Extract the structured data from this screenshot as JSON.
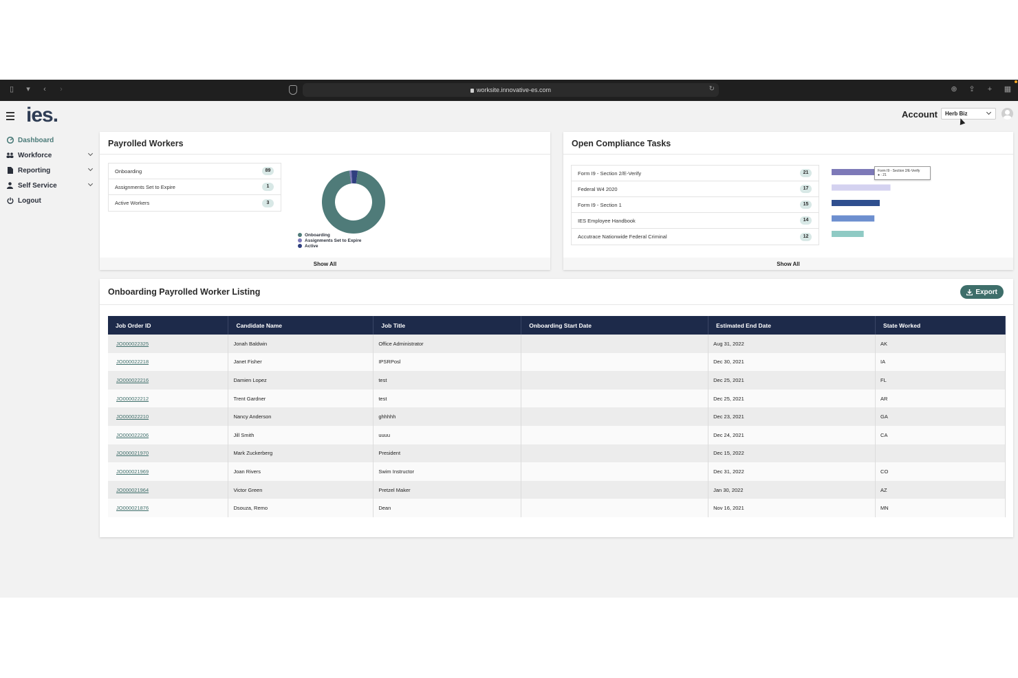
{
  "browser": {
    "url": "worksite.innovative-es.com"
  },
  "app": {
    "logo": "ies",
    "logo_dot": "."
  },
  "sidebar": {
    "items": [
      {
        "label": "Dashboard",
        "icon": "dashboard-icon"
      },
      {
        "label": "Workforce",
        "icon": "users-icon"
      },
      {
        "label": "Reporting",
        "icon": "document-icon"
      },
      {
        "label": "Self Service",
        "icon": "person-icon"
      },
      {
        "label": "Logout",
        "icon": "power-icon"
      }
    ]
  },
  "header": {
    "account_label": "Account",
    "account_value": "Herb Biz"
  },
  "payrolled": {
    "title": "Payrolled Workers",
    "rows": [
      {
        "label": "Onboarding",
        "count": "89"
      },
      {
        "label": "Assignments Set to Expire",
        "count": "1"
      },
      {
        "label": "Active Workers",
        "count": "3"
      }
    ],
    "legend": [
      "Onboarding",
      "Assignments Set to Expire",
      "Active"
    ],
    "colors": [
      "#4f7b79",
      "#7d79b8",
      "#2f3f7f"
    ],
    "values": [
      89,
      1,
      3
    ],
    "show_all": "Show All"
  },
  "compliance": {
    "title": "Open Compliance Tasks",
    "rows": [
      {
        "label": "Form I9 - Section 2/E-Verify",
        "count": "21"
      },
      {
        "label": "Federal W4 2020",
        "count": "17"
      },
      {
        "label": "Form I9 - Section 1",
        "count": "15"
      },
      {
        "label": "IES Employee Handbook",
        "count": "14"
      },
      {
        "label": "Accutrace Nationwide Federal Criminal",
        "count": "12"
      }
    ],
    "bar_colors": [
      "#7d79b8",
      "#d4d2f0",
      "#2f4f8f",
      "#6d8fcf",
      "#8fcac4"
    ],
    "tooltip_title": "Form I9 - Section 2/E-Verify",
    "tooltip_value": "● : 21",
    "show_all": "Show All"
  },
  "listing": {
    "title": "Onboarding Payrolled Worker Listing",
    "export_label": "Export",
    "columns": [
      "Job Order ID",
      "Candidate Name",
      "Job Title",
      "Onboarding Start Date",
      "Estimated End Date",
      "State Worked"
    ],
    "rows": [
      [
        "JO000022325",
        "Jonah Baldwin",
        "Office Administrator",
        "",
        "Aug 31, 2022",
        "AK"
      ],
      [
        "JO000022218",
        "Janet Fisher",
        "IPSRPosl",
        "",
        "Dec 30, 2021",
        "IA"
      ],
      [
        "JO000022216",
        "Damien Lopez",
        "test",
        "",
        "Dec 25, 2021",
        "FL"
      ],
      [
        "JO000022212",
        "Trent Gardner",
        "test",
        "",
        "Dec 25, 2021",
        "AR"
      ],
      [
        "JO000022210",
        "Nancy Anderson",
        "ghhhhh",
        "",
        "Dec 23, 2021",
        "GA"
      ],
      [
        "JO000022206",
        "Jill Smith",
        "uuuu",
        "",
        "Dec 24, 2021",
        "CA"
      ],
      [
        "JO000021970",
        "Mark Zuckerberg",
        "President",
        "",
        "Dec 15, 2022",
        ""
      ],
      [
        "JO000021969",
        "Joan Rivers",
        "Swim Instructor",
        "",
        "Dec 31, 2022",
        "CO"
      ],
      [
        "JO000021964",
        "Victor Green",
        "Pretzel Maker",
        "",
        "Jan 30, 2022",
        "AZ"
      ],
      [
        "JO000021876",
        "Dsouza, Remo",
        "Dean",
        "",
        "Nov 16, 2021",
        "MN"
      ]
    ]
  }
}
